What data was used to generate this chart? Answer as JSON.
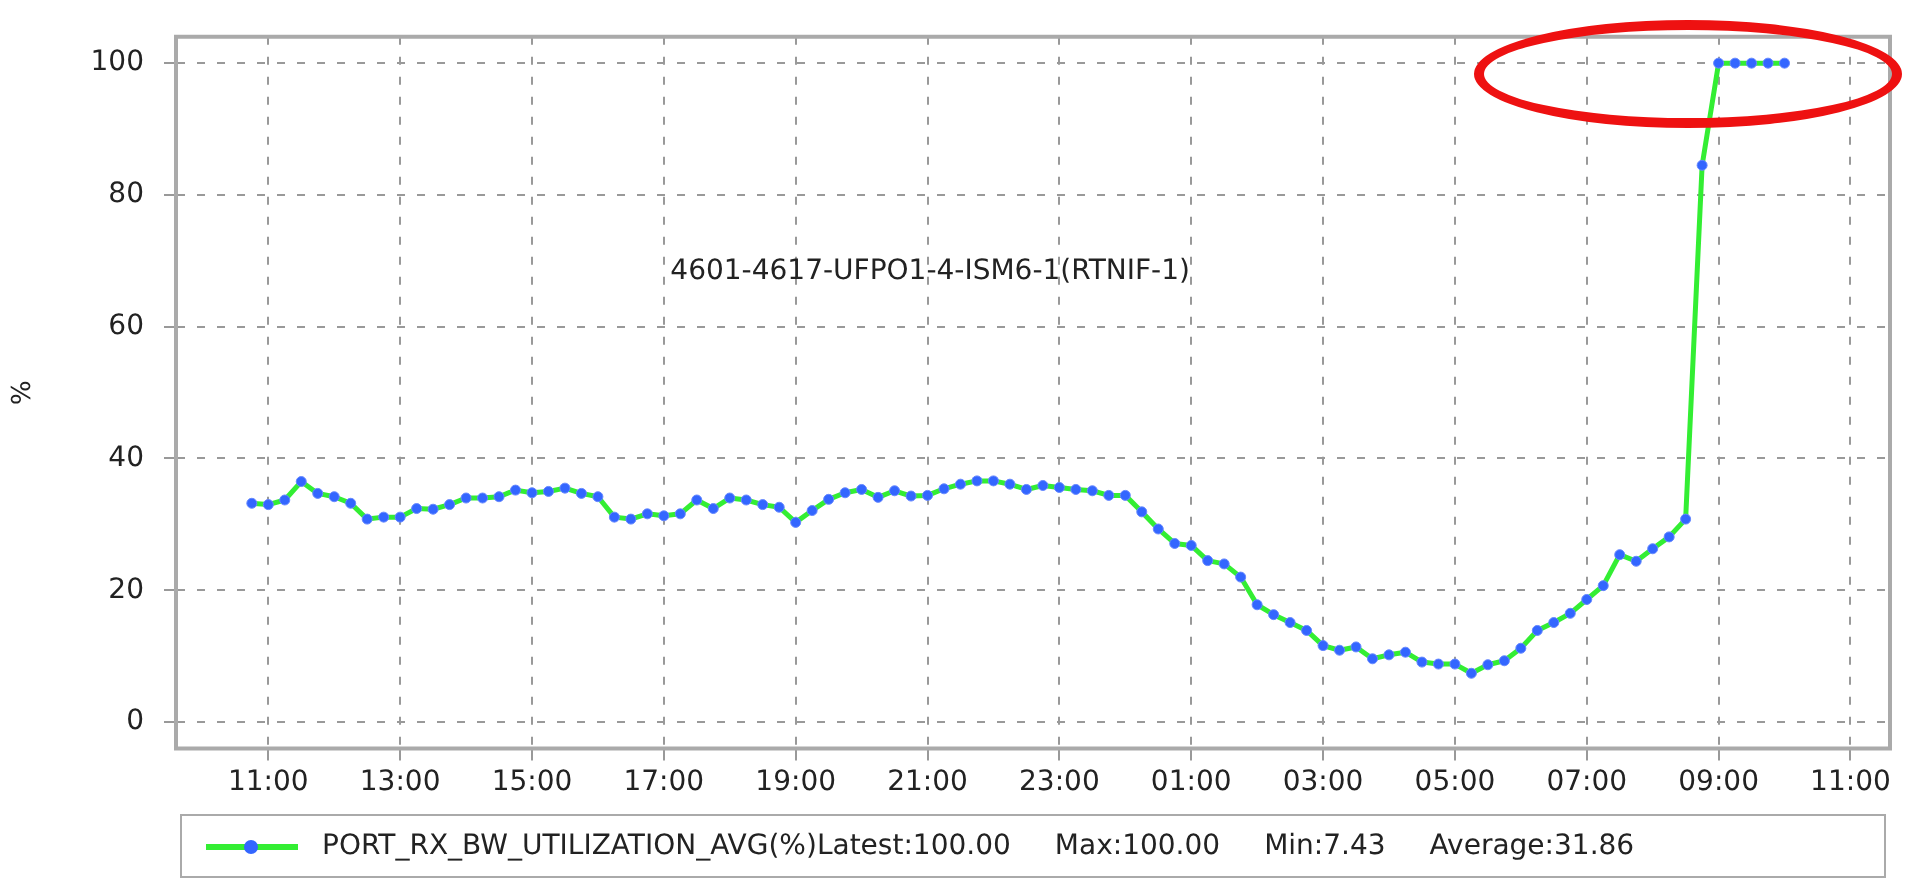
{
  "chart_data": {
    "type": "line",
    "ylabel": "%",
    "annotations": [
      "4601-4617-UFPO1-4-ISM6-1(RTNIF-1)",
      "Latest:100.00",
      "Max:100.00",
      "Min:7.43",
      "Average:31.86"
    ],
    "x": [
      "2000-01-01T10:45",
      "2000-01-01T11:00",
      "2000-01-01T11:15",
      "2000-01-01T11:30",
      "2000-01-01T11:45",
      "2000-01-01T12:00",
      "2000-01-01T12:15",
      "2000-01-01T12:30",
      "2000-01-01T12:45",
      "2000-01-01T13:00",
      "2000-01-01T13:15",
      "2000-01-01T13:30",
      "2000-01-01T13:45",
      "2000-01-01T14:00",
      "2000-01-01T14:15",
      "2000-01-01T14:30",
      "2000-01-01T14:45",
      "2000-01-01T15:00",
      "2000-01-01T15:15",
      "2000-01-01T15:30",
      "2000-01-01T15:45",
      "2000-01-01T16:00",
      "2000-01-01T16:15",
      "2000-01-01T16:30",
      "2000-01-01T16:45",
      "2000-01-01T17:00",
      "2000-01-01T17:15",
      "2000-01-01T17:30",
      "2000-01-01T17:45",
      "2000-01-01T18:00",
      "2000-01-01T18:15",
      "2000-01-01T18:30",
      "2000-01-01T18:45",
      "2000-01-01T19:00",
      "2000-01-01T19:15",
      "2000-01-01T19:30",
      "2000-01-01T19:45",
      "2000-01-01T20:00",
      "2000-01-01T20:15",
      "2000-01-01T20:30",
      "2000-01-01T20:45",
      "2000-01-01T21:00",
      "2000-01-01T21:15",
      "2000-01-01T21:30",
      "2000-01-01T21:45",
      "2000-01-01T22:00",
      "2000-01-01T22:15",
      "2000-01-01T22:30",
      "2000-01-01T22:45",
      "2000-01-01T23:00",
      "2000-01-01T23:15",
      "2000-01-01T23:30",
      "2000-01-01T23:45",
      "2000-01-02T00:00",
      "2000-01-02T00:15",
      "2000-01-02T00:30",
      "2000-01-02T00:45",
      "2000-01-02T01:00",
      "2000-01-02T01:15",
      "2000-01-02T01:30",
      "2000-01-02T01:45",
      "2000-01-02T02:00",
      "2000-01-02T02:15",
      "2000-01-02T02:30",
      "2000-01-02T02:45",
      "2000-01-02T03:00",
      "2000-01-02T03:15",
      "2000-01-02T03:30",
      "2000-01-02T03:45",
      "2000-01-02T04:00",
      "2000-01-02T04:15",
      "2000-01-02T04:30",
      "2000-01-02T04:45",
      "2000-01-02T05:00",
      "2000-01-02T05:15",
      "2000-01-02T05:30",
      "2000-01-02T05:45",
      "2000-01-02T06:00",
      "2000-01-02T06:15",
      "2000-01-02T06:30",
      "2000-01-02T06:45",
      "2000-01-02T07:00",
      "2000-01-02T07:15",
      "2000-01-02T07:30",
      "2000-01-02T07:45",
      "2000-01-02T08:00",
      "2000-01-02T08:15",
      "2000-01-02T08:30",
      "2000-01-02T08:45",
      "2000-01-02T09:00",
      "2000-01-02T09:15",
      "2000-01-02T09:30",
      "2000-01-02T09:45",
      "2000-01-02T10:00"
    ],
    "series": [
      {
        "name": "PORT_RX_BW_UTILIZATION_AVG(%)",
        "color": "#33ee33",
        "values": [
          33.2,
          33.0,
          33.7,
          36.5,
          34.7,
          34.2,
          33.2,
          30.8,
          31.1,
          31.1,
          32.4,
          32.3,
          33.0,
          34.0,
          34.0,
          34.2,
          35.2,
          34.8,
          35.0,
          35.5,
          34.7,
          34.2,
          31.1,
          30.8,
          31.6,
          31.3,
          31.6,
          33.7,
          32.4,
          34.0,
          33.7,
          33.0,
          32.6,
          30.3,
          32.1,
          33.8,
          34.8,
          35.3,
          34.1,
          35.1,
          34.3,
          34.4,
          35.4,
          36.1,
          36.6,
          36.6,
          36.1,
          35.3,
          35.9,
          35.6,
          35.3,
          35.1,
          34.4,
          34.4,
          31.9,
          29.3,
          27.1,
          26.8,
          24.5,
          24.0,
          22.0,
          17.8,
          16.3,
          15.1,
          13.9,
          11.6,
          10.9,
          11.4,
          9.6,
          10.2,
          10.6,
          9.1,
          8.8,
          8.8,
          7.4,
          8.7,
          9.3,
          11.2,
          13.9,
          15.1,
          16.5,
          18.6,
          20.7,
          25.4,
          24.4,
          26.3,
          28.1,
          30.8,
          84.5,
          100,
          100,
          100,
          100,
          100
        ]
      }
    ],
    "xlim": [
      "2000-01-01T09:36",
      "2000-01-02T11:36"
    ],
    "xticks": [
      {
        "value": "2000-01-01T11:00",
        "label": "11:00"
      },
      {
        "value": "2000-01-01T13:00",
        "label": "13:00"
      },
      {
        "value": "2000-01-01T15:00",
        "label": "15:00"
      },
      {
        "value": "2000-01-01T17:00",
        "label": "17:00"
      },
      {
        "value": "2000-01-01T19:00",
        "label": "19:00"
      },
      {
        "value": "2000-01-01T21:00",
        "label": "21:00"
      },
      {
        "value": "2000-01-01T23:00",
        "label": "23:00"
      },
      {
        "value": "2000-01-02T01:00",
        "label": "01:00"
      },
      {
        "value": "2000-01-02T03:00",
        "label": "03:00"
      },
      {
        "value": "2000-01-02T05:00",
        "label": "05:00"
      },
      {
        "value": "2000-01-02T07:00",
        "label": "07:00"
      },
      {
        "value": "2000-01-02T09:00",
        "label": "09:00"
      },
      {
        "value": "2000-01-02T11:00",
        "label": "11:00"
      }
    ],
    "ylim": [
      -4,
      104
    ],
    "yticks": [
      0,
      20,
      40,
      60,
      80,
      100
    ],
    "grid": true,
    "legend": "bottom",
    "marker": "circle",
    "line_style": "solid"
  }
}
